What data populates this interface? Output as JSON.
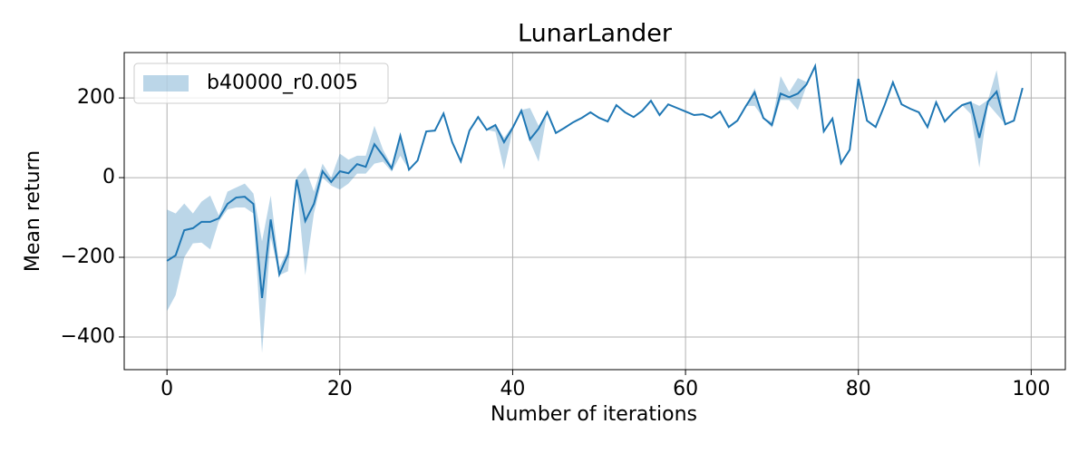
{
  "chart_data": {
    "type": "line-band",
    "title": "LunarLander",
    "x_label": "Number of iterations",
    "y_label": "Mean return",
    "x": [
      0,
      1,
      2,
      3,
      4,
      5,
      6,
      7,
      8,
      9,
      10,
      11,
      12,
      13,
      14,
      15,
      16,
      17,
      18,
      19,
      20,
      21,
      22,
      23,
      24,
      25,
      26,
      27,
      28,
      29,
      30,
      31,
      32,
      33,
      34,
      35,
      36,
      37,
      38,
      39,
      40,
      41,
      42,
      43,
      44,
      45,
      46,
      47,
      48,
      49,
      50,
      51,
      52,
      53,
      54,
      55,
      56,
      57,
      58,
      59,
      60,
      61,
      62,
      63,
      64,
      65,
      66,
      67,
      68,
      69,
      70,
      71,
      72,
      73,
      74,
      75,
      76,
      77,
      78,
      79,
      80,
      81,
      82,
      83,
      84,
      85,
      86,
      87,
      88,
      89,
      90,
      91,
      92,
      93,
      94,
      95,
      96,
      97,
      98,
      99
    ],
    "series": [
      {
        "name": "b40000_r0.005",
        "color": "#1f77b4",
        "values": [
          -209,
          -195,
          -132,
          -127,
          -111,
          -111,
          -102,
          -66,
          -50,
          -48,
          -66,
          -302,
          -105,
          -243,
          -193,
          -5,
          -109,
          -66,
          16,
          -11,
          16,
          11,
          34,
          27,
          84,
          55,
          23,
          105,
          20,
          43,
          116,
          118,
          161,
          89,
          41,
          118,
          152,
          120,
          132,
          89,
          125,
          168,
          96,
          123,
          164,
          112,
          125,
          139,
          150,
          164,
          150,
          141,
          182,
          164,
          152,
          168,
          193,
          157,
          184,
          175,
          166,
          157,
          159,
          150,
          166,
          127,
          143,
          180,
          214,
          150,
          132,
          211,
          202,
          211,
          234,
          280,
          116,
          148,
          36,
          70,
          248,
          143,
          127,
          180,
          239,
          184,
          173,
          164,
          127,
          189,
          141,
          164,
          182,
          189,
          100,
          191,
          216,
          134,
          143,
          225
        ],
        "upper": [
          -80,
          -90,
          -65,
          -90,
          -60,
          -45,
          -95,
          -35,
          -25,
          -15,
          -40,
          -160,
          -45,
          -225,
          -180,
          0,
          25,
          -35,
          35,
          0,
          60,
          45,
          55,
          55,
          130,
          70,
          30,
          110,
          20,
          43,
          116,
          118,
          161,
          89,
          41,
          118,
          152,
          120,
          135,
          100,
          130,
          170,
          175,
          130,
          164,
          112,
          125,
          139,
          150,
          164,
          150,
          141,
          182,
          164,
          152,
          168,
          193,
          157,
          184,
          175,
          166,
          157,
          159,
          150,
          166,
          127,
          143,
          180,
          225,
          150,
          140,
          255,
          215,
          250,
          240,
          280,
          116,
          148,
          36,
          70,
          248,
          143,
          127,
          180,
          239,
          184,
          173,
          164,
          127,
          189,
          141,
          164,
          182,
          190,
          180,
          195,
          270,
          134,
          143,
          225
        ],
        "lower": [
          -335,
          -295,
          -200,
          -165,
          -163,
          -180,
          -110,
          -80,
          -75,
          -75,
          -90,
          -440,
          -150,
          -245,
          -235,
          -15,
          -245,
          -90,
          0,
          -20,
          -30,
          -15,
          10,
          10,
          35,
          40,
          15,
          55,
          20,
          43,
          116,
          118,
          161,
          89,
          41,
          118,
          152,
          120,
          115,
          20,
          120,
          165,
          90,
          40,
          164,
          112,
          125,
          139,
          150,
          164,
          150,
          141,
          182,
          164,
          152,
          168,
          193,
          157,
          184,
          175,
          166,
          157,
          159,
          150,
          166,
          127,
          143,
          180,
          180,
          150,
          125,
          195,
          195,
          170,
          230,
          280,
          116,
          148,
          36,
          70,
          248,
          143,
          127,
          180,
          239,
          184,
          173,
          164,
          127,
          189,
          141,
          164,
          182,
          160,
          25,
          185,
          160,
          134,
          143,
          225
        ]
      }
    ],
    "xlim": [
      -4.95,
      103.95
    ],
    "ylim": [
      -482,
      314
    ],
    "xticks": [
      0,
      20,
      40,
      60,
      80,
      100
    ],
    "yticks": [
      {
        "value": -400,
        "label": "−400"
      },
      {
        "value": -200,
        "label": "−200"
      },
      0,
      200
    ],
    "grid": true,
    "legend": "upper-left"
  }
}
